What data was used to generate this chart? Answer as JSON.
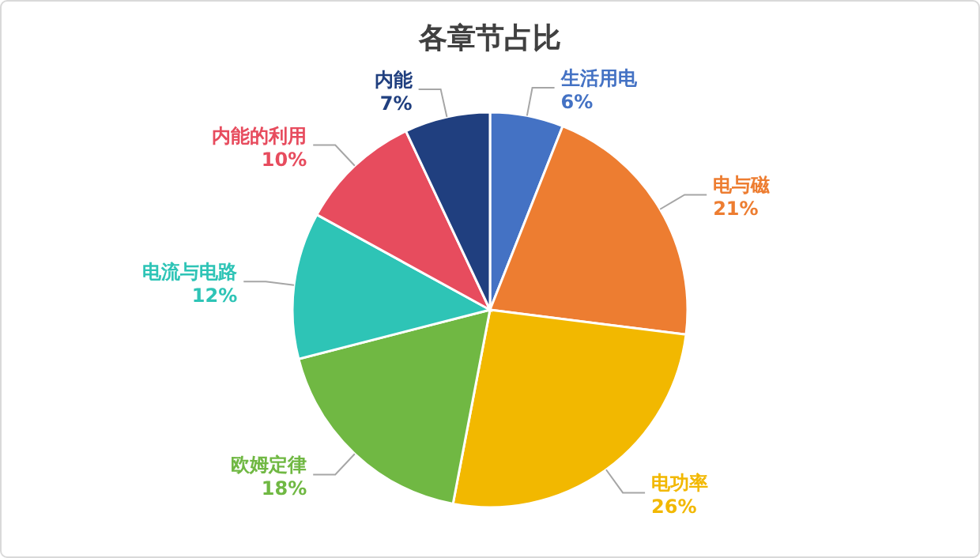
{
  "chart_data": {
    "type": "pie",
    "title": "各章节占比",
    "categories": [
      "生活用电",
      "电与磁",
      "电功率",
      "欧姆定律",
      "电流与电路",
      "内能的利用",
      "内能"
    ],
    "values": [
      6,
      21,
      26,
      18,
      12,
      10,
      7
    ],
    "value_labels": [
      "6%",
      "21%",
      "26%",
      "18%",
      "12%",
      "10%",
      "7%"
    ],
    "colors": [
      "#4472c4",
      "#ed7d31",
      "#f2b800",
      "#70b843",
      "#2ec4b6",
      "#e74c5e",
      "#203f7f"
    ]
  }
}
